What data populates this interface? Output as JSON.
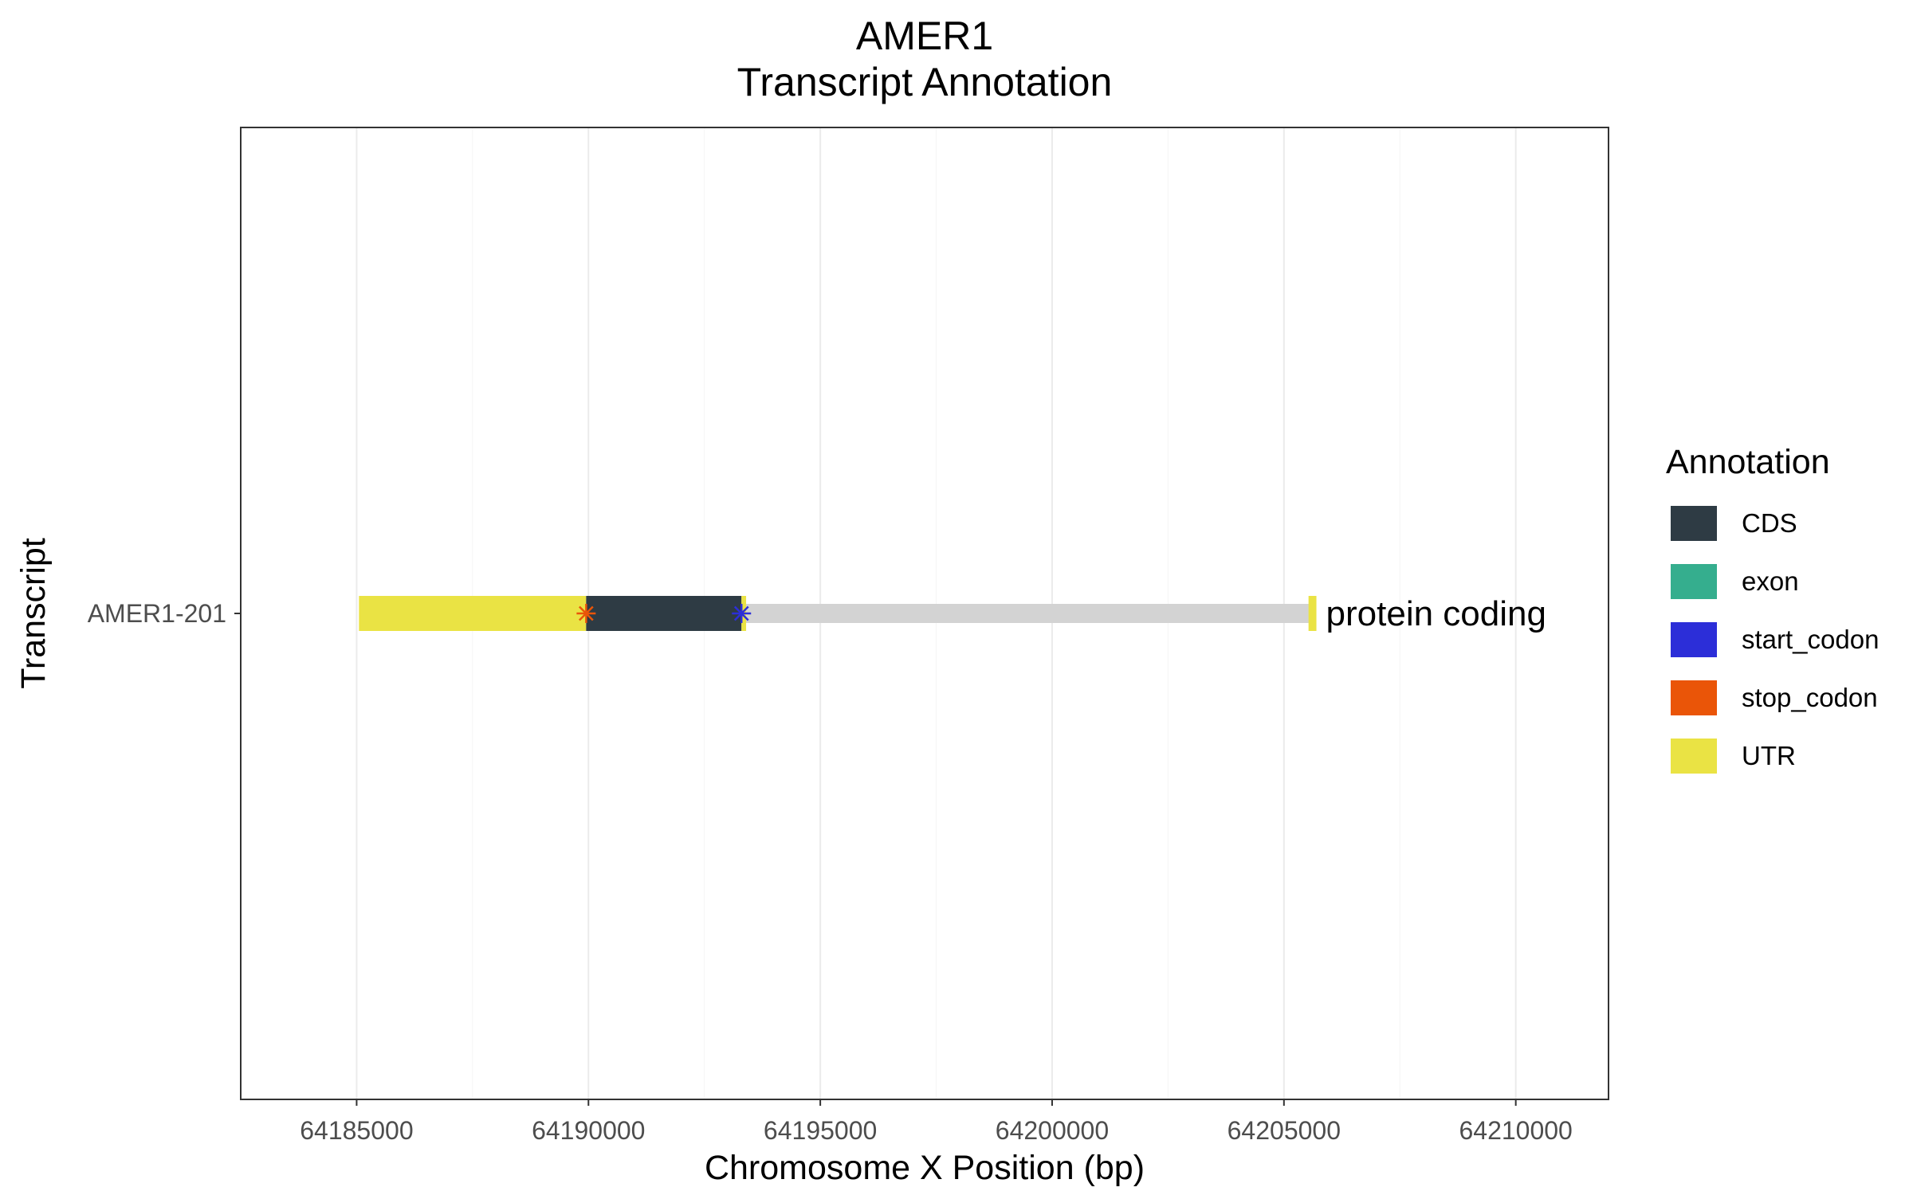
{
  "chart_data": {
    "type": "bar",
    "title_line1": "AMER1",
    "title_line2": "Transcript Annotation",
    "xlabel": "Chromosome X Position (bp)",
    "ylabel": "Transcript",
    "xlim": [
      64182500,
      64212000
    ],
    "x_ticks": [
      "64185000",
      "64190000",
      "64195000",
      "64200000",
      "64205000",
      "64210000"
    ],
    "x_tick_values": [
      64185000,
      64190000,
      64195000,
      64200000,
      64205000,
      64210000
    ],
    "grid": true,
    "legend": {
      "title": "Annotation",
      "placement": "right",
      "entries": [
        {
          "label": "CDS",
          "color": "#2e3b44"
        },
        {
          "label": "exon",
          "color": "#35ae8e"
        },
        {
          "label": "start_codon",
          "color": "#2c2ed8"
        },
        {
          "label": "stop_codon",
          "color": "#ea5508"
        },
        {
          "label": "UTR",
          "color": "#eae344"
        }
      ]
    },
    "transcripts": [
      {
        "name": "AMER1-201",
        "type_label": "protein coding",
        "intron": {
          "start": 64193350,
          "end": 64205550,
          "color": "#d3d3d3"
        },
        "segments": [
          {
            "feature": "UTR",
            "start": 64185050,
            "end": 64189950,
            "color": "#eae344"
          },
          {
            "feature": "CDS",
            "start": 64189950,
            "end": 64193300,
            "color": "#2e3b44"
          },
          {
            "feature": "UTR",
            "start": 64193300,
            "end": 64193400,
            "color": "#eae344"
          },
          {
            "feature": "UTR",
            "start": 64205530,
            "end": 64205700,
            "color": "#eae344"
          }
        ],
        "codons": [
          {
            "feature": "stop_codon",
            "position": 64189950,
            "color": "#ea5508"
          },
          {
            "feature": "start_codon",
            "position": 64193300,
            "color": "#2c2ed8"
          }
        ]
      }
    ]
  }
}
